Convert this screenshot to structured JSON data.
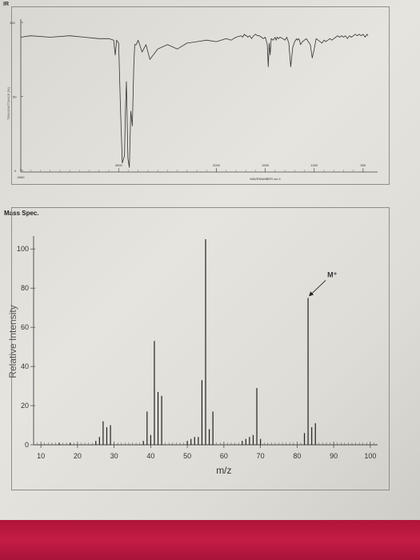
{
  "ir": {
    "title": "IR",
    "ylabel": "TRANSMITTANCE [%]",
    "xlabel": "WAVENUMBER cm-1",
    "y_ticks": [
      "100",
      "50",
      "0"
    ],
    "x_ticks": [
      "4000",
      "3000",
      "2000",
      "1500",
      "1000",
      "500"
    ]
  },
  "ms": {
    "title": "Mass Spec.",
    "annotation": "M⁺"
  },
  "chart_data": [
    {
      "type": "line",
      "title": "IR",
      "xlabel": "WAVENUMBER cm-1",
      "ylabel": "TRANSMITTANCE [%]",
      "xlim": [
        4000,
        450
      ],
      "ylim": [
        0,
        100
      ],
      "x_ticks": [
        4000,
        3000,
        2000,
        1500,
        1000,
        500
      ],
      "y_ticks": [
        0,
        50,
        100
      ],
      "grid": false,
      "series": [
        {
          "x": [
            4000,
            3900,
            3700,
            3500,
            3350,
            3200,
            3100,
            3050,
            3035,
            3020,
            3000,
            2980,
            2962,
            2940,
            2930,
            2920,
            2905,
            2890,
            2875,
            2860,
            2845,
            2835,
            2820,
            2800,
            2760,
            2720,
            2680,
            2600,
            2500,
            2400,
            2300,
            2200,
            2100,
            2000,
            1900,
            1850,
            1800,
            1750,
            1730,
            1715,
            1700,
            1690,
            1680,
            1660,
            1640,
            1620,
            1600,
            1580,
            1560,
            1540,
            1520,
            1500,
            1480,
            1470,
            1460,
            1450,
            1440,
            1420,
            1400,
            1390,
            1378,
            1365,
            1350,
            1320,
            1300,
            1280,
            1260,
            1240,
            1220,
            1200,
            1180,
            1170,
            1160,
            1150,
            1140,
            1120,
            1100,
            1080,
            1060,
            1040,
            1020,
            1000,
            980,
            960,
            940,
            920,
            900,
            880,
            860,
            840,
            820,
            800,
            780,
            760,
            740,
            720,
            700,
            680,
            660,
            640,
            620,
            600,
            580,
            560,
            540,
            520,
            500,
            480,
            460,
            450
          ],
          "y": [
            90,
            91,
            90,
            91,
            90,
            89,
            89,
            88,
            78,
            88,
            86,
            40,
            5,
            10,
            40,
            60,
            8,
            2,
            40,
            30,
            70,
            85,
            85,
            88,
            80,
            85,
            75,
            82,
            85,
            82,
            86,
            87,
            88,
            87,
            89,
            88,
            90,
            91,
            90,
            92,
            91,
            91,
            90,
            91,
            89,
            91,
            92,
            91,
            91,
            90,
            89,
            90,
            85,
            70,
            86,
            78,
            89,
            88,
            90,
            88,
            90,
            89,
            90,
            89,
            88,
            90,
            86,
            70,
            83,
            87,
            89,
            88,
            89,
            88,
            85,
            87,
            88,
            89,
            87,
            85,
            76,
            82,
            89,
            88,
            87,
            86,
            88,
            87,
            88,
            89,
            88,
            89,
            90,
            91,
            90,
            91,
            90,
            91,
            89,
            91,
            90,
            91,
            92,
            91,
            92,
            91,
            92,
            90,
            92,
            91
          ]
        }
      ]
    },
    {
      "type": "bar",
      "title": "Mass Spec.",
      "xlabel": "m/z",
      "ylabel": "Relative Intensity",
      "xlim": [
        8,
        102
      ],
      "ylim": [
        0,
        105
      ],
      "x_ticks": [
        10,
        20,
        30,
        40,
        50,
        60,
        70,
        80,
        90,
        100
      ],
      "y_ticks": [
        0,
        20,
        40,
        60,
        80,
        100
      ],
      "grid": false,
      "x": [
        15,
        18,
        25,
        26,
        27,
        28,
        29,
        38,
        39,
        40,
        41,
        42,
        43,
        50,
        51,
        52,
        53,
        54,
        55,
        56,
        57,
        65,
        66,
        67,
        68,
        69,
        70,
        82,
        83,
        84,
        85
      ],
      "values": [
        1,
        1,
        2,
        4,
        12,
        9,
        10,
        2,
        17,
        5,
        53,
        27,
        25,
        2,
        3,
        4,
        4,
        33,
        105,
        8,
        17,
        2,
        3,
        4,
        5,
        29,
        3,
        6,
        75,
        9,
        11
      ],
      "annotations": [
        {
          "text": "M⁺",
          "x": 83,
          "y": 75
        }
      ]
    }
  ]
}
